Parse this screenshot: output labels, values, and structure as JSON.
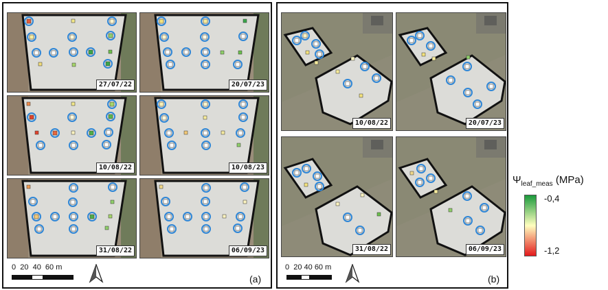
{
  "panel_a": {
    "label": "(a)",
    "dates": [
      "27/07/22",
      "20/07/23",
      "10/08/22",
      "10/08/23",
      "31/08/22",
      "06/09/23"
    ]
  },
  "panel_b": {
    "label": "(b)",
    "dates": [
      "10/08/22",
      "20/07/23",
      "31/08/22",
      "06/09/23"
    ]
  },
  "scale_bar": {
    "a_text": "0  20  40  60 m",
    "b_text": "0  20 40 60 m"
  },
  "legend": {
    "symbol": "Ψ",
    "subscript": "leaf_meas",
    "unit": "(MPa)",
    "max_label": "-0,4",
    "min_label": "-1,2",
    "color_high": "#1a9a3c",
    "color_mid": "#ffffbf",
    "color_low": "#e31a1c"
  },
  "marker_ring_color": "#2f86d6",
  "icons": [
    "north-arrow-icon"
  ]
}
